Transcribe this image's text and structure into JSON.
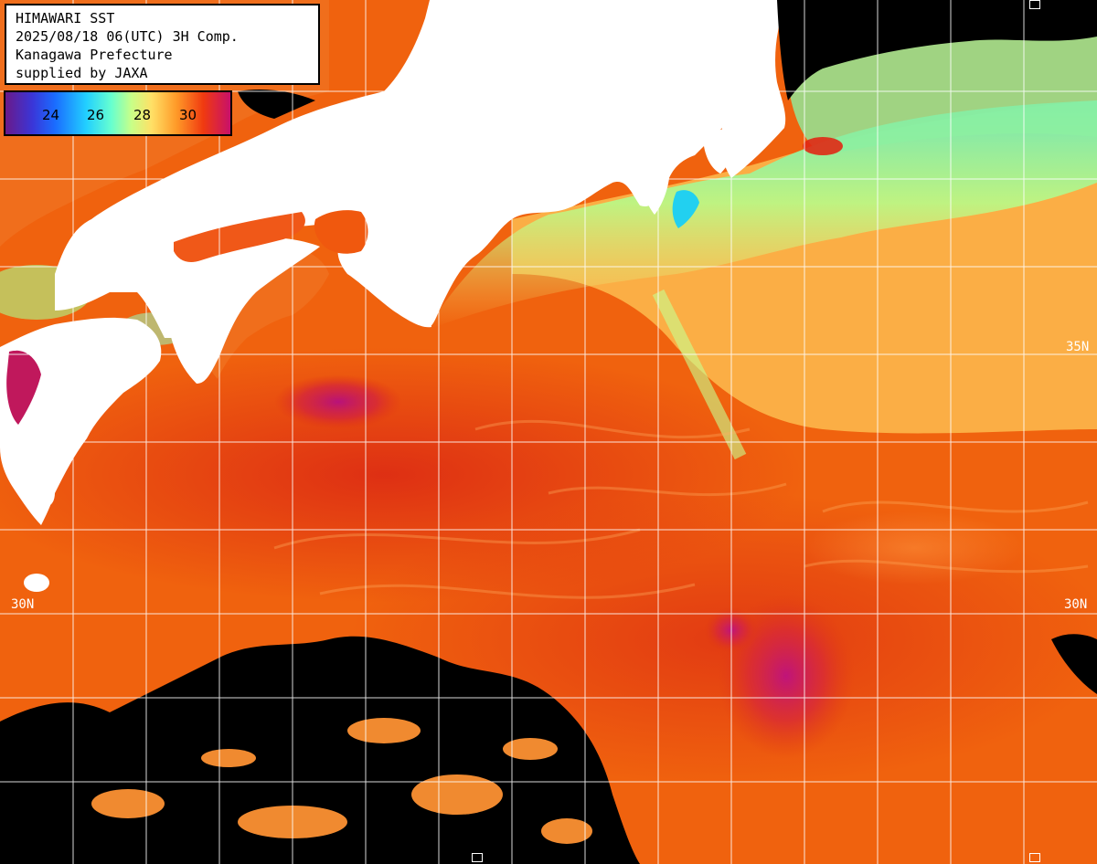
{
  "header": {
    "lines": [
      "HIMAWARI SST",
      "2025/08/18 06(UTC) 3H Comp.",
      "Kanagawa Prefecture",
      "supplied by JAXA"
    ]
  },
  "colorbar": {
    "labels": [
      "24",
      "26",
      "28",
      "30"
    ]
  },
  "grid": {
    "lat_labels": {
      "lat_35_left": "35",
      "lat_35_right": "35N",
      "lat_30_left": "30N",
      "lat_30_right": "30N"
    }
  },
  "colors": {
    "land": "#ffffff",
    "cloud_missing": "#000000",
    "grid": "#ffffff",
    "sst_warm": "#f05a0a",
    "sst_hot": "#b8127a",
    "sst_cool": "#8cf0a0"
  }
}
